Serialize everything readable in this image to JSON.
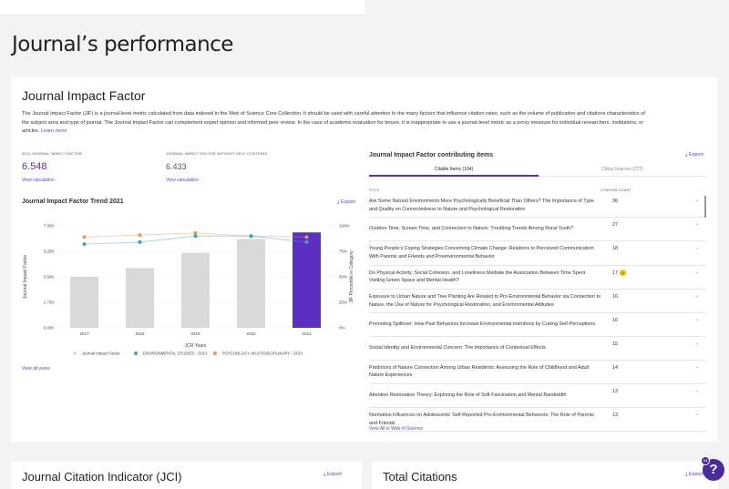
{
  "page_title": "Journal’s performance",
  "jif": {
    "title": "Journal Impact Factor",
    "description": "The Journal Impact Factor (JIF) is a journal-level metric calculated from data indexed in the Web of Science Core Collection. It should be used with careful attention to the many factors that influence citation rates, such as the volume of publication and citations characteristics of the subject area and type of journal. The Journal Impact Factor can complement expert opinion and informed peer review. In the case of academic evaluation for tenure, it is inappropriate to use a journal-level metric as a proxy measure for individual researchers, institutions, or articles.",
    "learn_more": "Learn more",
    "metric1_label": "2021 Journal Impact Factor",
    "metric1_value": "6.548",
    "metric1_link": "View calculation",
    "metric2_label": "Journal Impact Factor without self citations",
    "metric2_value": "6.433",
    "metric2_link": "View calculation",
    "trend_title": "Journal Impact Factor Trend 2021",
    "export": "Export",
    "view_all_years": "View all years"
  },
  "chart_data": {
    "type": "bar",
    "categories": [
      "2017",
      "2018",
      "2019",
      "2020",
      "2021"
    ],
    "xlabel": "JCR Years",
    "ylabel": "Journal Impact Factor",
    "y2label": "JIF Percentile in Category",
    "ylim": [
      0,
      7
    ],
    "y_ticks": [
      "0.000",
      "1.750",
      "3.500",
      "5.250",
      "7.000"
    ],
    "y2lim": [
      0,
      100
    ],
    "y2_ticks": [
      "0%",
      "25%",
      "50%",
      "75%",
      "100%"
    ],
    "grid": true,
    "legend": "bottom",
    "series": [
      {
        "name": "Journal Impact Factor",
        "type": "bar",
        "values": [
          3.5,
          4.1,
          5.15,
          6.1,
          6.548
        ],
        "color": "#d9d9d9",
        "highlight_color": "#5b2fc2"
      },
      {
        "name": "ENVIRONMENTAL STUDIES - SSCI",
        "type": "line",
        "values": [
          82,
          84,
          90,
          90,
          84
        ],
        "color": "#3aa6b9"
      },
      {
        "name": "PSYCHOLOGY, MULTIDISCIPLINARY - SSCI",
        "type": "line",
        "values": [
          89,
          91,
          93,
          90,
          89
        ],
        "color": "#f0945a"
      }
    ]
  },
  "contrib": {
    "title": "Journal Impact Factor contributing items",
    "export": "Export",
    "tabs": [
      "Citable Items (104)",
      "Citing Sources (272)"
    ],
    "col_title": "Title",
    "col_count": "Citation count",
    "rows": [
      {
        "title": "Are Some Natural Environments More Psychologically Beneficial Than Others? The Importance of Type and Quality on Connectedness to Nature and Psychological Restoration",
        "count": "36"
      },
      {
        "title": "Outdoor Time, Screen Time, and Connection to Nature: Troubling Trends Among Rural Youth?",
        "count": "27"
      },
      {
        "title": "Young People’s Coping Strategies Concerning Climate Change: Relations to Perceived Communication With Parents and Friends and Proenvironmental Behavior",
        "count": "18"
      },
      {
        "title": "Do Physical Activity, Social Cohesion, and Loneliness Mediate the Association Between Time Spent Visiting Green Space and Mental Health?",
        "count": "17",
        "badge": "a"
      },
      {
        "title": "Exposure to Urban Nature and Tree Planting Are Related to Pro-Environmental Behavior via Connection to Nature, the Use of Nature for Psychological Restoration, and Environmental Attitudes",
        "count": "16"
      },
      {
        "title": "Promoting Spillover: How Past Behaviors Increase Environmental Intentions by Cueing Self-Perceptions",
        "count": "16"
      },
      {
        "title": "Social Identity and Environmental Concern: The Importance of Contextual Effects",
        "count": "15"
      },
      {
        "title": "Predictors of Nature Connection Among Urban Residents: Assessing the Role of Childhood and Adult Nature Experiences",
        "count": "14"
      },
      {
        "title": "Attention Restoration Theory: Exploring the Role of Soft Fascination and Mental Bandwidth",
        "count": "13"
      },
      {
        "title": "Normative Influences on Adolescents’ Self-Reported Pro-Environmental Behaviors: The Role of Parents and Friends",
        "count": "13"
      }
    ],
    "view_all": "View All in Web of Science"
  },
  "jci": {
    "title": "Journal Citation Indicator (JCI)",
    "export": "Export"
  },
  "total": {
    "title": "Total Citations",
    "export": "Export"
  },
  "help": {
    "label": "?",
    "count": "14"
  }
}
